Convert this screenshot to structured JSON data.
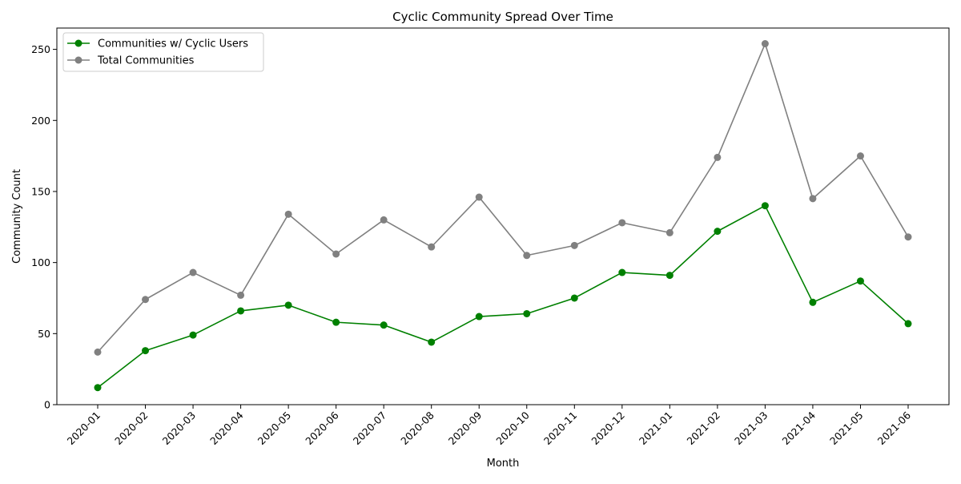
{
  "chart_data": {
    "type": "line",
    "title": "Cyclic Community Spread Over Time",
    "xlabel": "Month",
    "ylabel": "Community Count",
    "categories": [
      "2020-01",
      "2020-02",
      "2020-03",
      "2020-04",
      "2020-05",
      "2020-06",
      "2020-07",
      "2020-08",
      "2020-09",
      "2020-10",
      "2020-11",
      "2020-12",
      "2021-01",
      "2021-02",
      "2021-03",
      "2021-04",
      "2021-05",
      "2021-06"
    ],
    "ylim": [
      0,
      265
    ],
    "yticks": [
      0,
      50,
      100,
      150,
      200,
      250
    ],
    "grid": false,
    "legend_position": "top-left",
    "series": [
      {
        "name": "Communities w/ Cyclic Users",
        "color": "#008000",
        "marker": "circle",
        "values": [
          12,
          38,
          49,
          66,
          70,
          58,
          56,
          44,
          62,
          64,
          75,
          93,
          91,
          122,
          140,
          72,
          87,
          57
        ]
      },
      {
        "name": "Total Communities",
        "color": "#808080",
        "marker": "circle",
        "values": [
          37,
          74,
          93,
          77,
          134,
          106,
          130,
          111,
          146,
          105,
          112,
          128,
          121,
          174,
          254,
          145,
          175,
          118
        ]
      }
    ]
  }
}
